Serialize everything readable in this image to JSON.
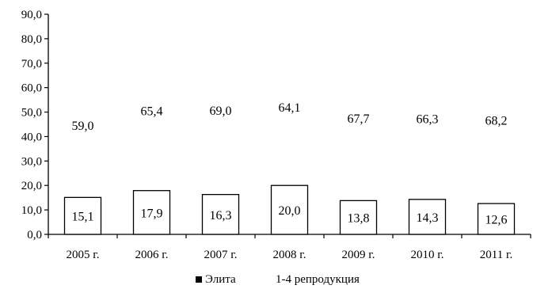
{
  "chart_data": {
    "type": "bar",
    "categories": [
      "2005 г.",
      "2006 г.",
      "2007 г.",
      "2008 г.",
      "2009 г.",
      "2010 г.",
      "2011 г."
    ],
    "series": [
      {
        "name": "Элита",
        "values": [
          15.1,
          17.9,
          16.3,
          20.0,
          13.8,
          14.3,
          12.6
        ],
        "labels": [
          "15,1",
          "17,9",
          "16,3",
          "20,0",
          "13,8",
          "14,3",
          "12,6"
        ],
        "fill": "#ffffff",
        "legend_marker": "#000000"
      },
      {
        "name": "1-4 репродукция",
        "values": [
          59.0,
          65.4,
          69.0,
          64.1,
          67.7,
          66.3,
          68.2
        ],
        "labels": [
          "59,0",
          "65,4",
          "69,0",
          "64,1",
          "67,7",
          "66,3",
          "68,2"
        ],
        "fill": "none"
      }
    ],
    "yticks": [
      "0,0",
      "10,0",
      "20,0",
      "30,0",
      "40,0",
      "50,0",
      "60,0",
      "70,0",
      "80,0",
      "90,0"
    ],
    "ylim": [
      0,
      90
    ],
    "grid": false,
    "legend_position": "bottom",
    "title": "",
    "xlabel": "",
    "ylabel": ""
  }
}
